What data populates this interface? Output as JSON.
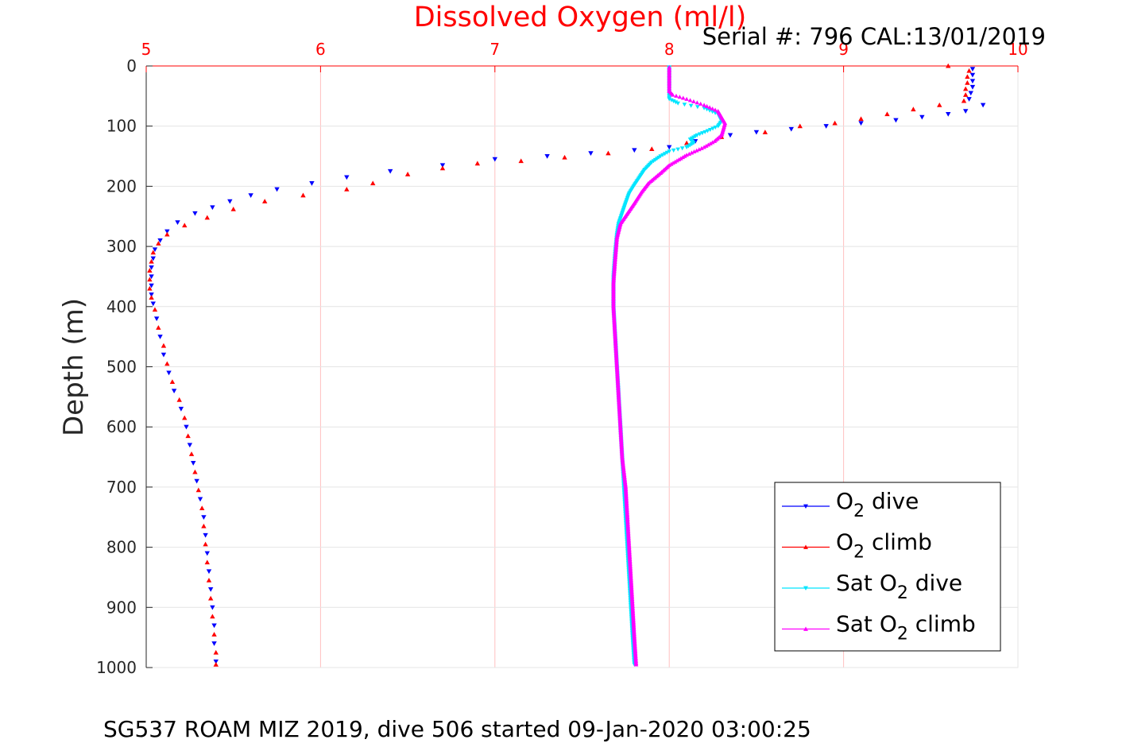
{
  "header": {
    "title": "Dissolved Oxygen (ml/l)",
    "serial": "Serial #: 796  CAL:13/01/2019"
  },
  "footer": {
    "caption": "SG537 ROAM MIZ 2019, dive 506 started 09-Jan-2020 03:00:25"
  },
  "chart_data": {
    "type": "scatter",
    "title": "Dissolved Oxygen (ml/l)",
    "xlabel": "Dissolved Oxygen (ml/l)",
    "ylabel": "Depth (m)",
    "xlim": [
      5,
      10
    ],
    "ylim": [
      0,
      1000
    ],
    "y_reversed": true,
    "x_axis_position": "top",
    "grid": true,
    "legend_position": "bottom-right",
    "x_ticks": [
      5,
      6,
      7,
      8,
      9,
      10
    ],
    "y_ticks": [
      0,
      100,
      200,
      300,
      400,
      500,
      600,
      700,
      800,
      900,
      1000
    ],
    "colors": {
      "axis_top": "#ff0000",
      "grid": "#ffc0c0",
      "legend_border": "#000000"
    },
    "series": [
      {
        "name": "O2 dive",
        "legend": {
          "main": "O",
          "sub": "2",
          "suffix": " dive",
          "prefix": ""
        },
        "color": "#0000ff",
        "marker": "down-triangle",
        "points": [
          [
            9.74,
            5
          ],
          [
            9.74,
            15
          ],
          [
            9.74,
            25
          ],
          [
            9.74,
            35
          ],
          [
            9.73,
            45
          ],
          [
            9.72,
            55
          ],
          [
            9.8,
            65
          ],
          [
            9.7,
            75
          ],
          [
            9.6,
            80
          ],
          [
            9.45,
            85
          ],
          [
            9.3,
            90
          ],
          [
            9.1,
            95
          ],
          [
            8.9,
            100
          ],
          [
            8.7,
            105
          ],
          [
            8.5,
            110
          ],
          [
            8.35,
            115
          ],
          [
            8.15,
            125
          ],
          [
            8.0,
            135
          ],
          [
            7.8,
            140
          ],
          [
            7.55,
            145
          ],
          [
            7.3,
            150
          ],
          [
            7.0,
            155
          ],
          [
            6.7,
            165
          ],
          [
            6.4,
            175
          ],
          [
            6.15,
            185
          ],
          [
            5.95,
            195
          ],
          [
            5.75,
            205
          ],
          [
            5.6,
            215
          ],
          [
            5.48,
            225
          ],
          [
            5.38,
            235
          ],
          [
            5.28,
            245
          ],
          [
            5.18,
            260
          ],
          [
            5.12,
            275
          ],
          [
            5.08,
            290
          ],
          [
            5.05,
            305
          ],
          [
            5.04,
            320
          ],
          [
            5.03,
            335
          ],
          [
            5.03,
            350
          ],
          [
            5.03,
            365
          ],
          [
            5.03,
            380
          ],
          [
            5.04,
            395
          ],
          [
            5.06,
            420
          ],
          [
            5.08,
            450
          ],
          [
            5.1,
            480
          ],
          [
            5.13,
            510
          ],
          [
            5.16,
            540
          ],
          [
            5.2,
            570
          ],
          [
            5.23,
            600
          ],
          [
            5.25,
            630
          ],
          [
            5.27,
            660
          ],
          [
            5.29,
            690
          ],
          [
            5.31,
            720
          ],
          [
            5.33,
            750
          ],
          [
            5.34,
            780
          ],
          [
            5.35,
            810
          ],
          [
            5.36,
            840
          ],
          [
            5.37,
            870
          ],
          [
            5.38,
            900
          ],
          [
            5.39,
            930
          ],
          [
            5.39,
            960
          ],
          [
            5.4,
            990
          ]
        ]
      },
      {
        "name": "O2 climb",
        "legend": {
          "main": "O",
          "sub": "2",
          "suffix": " climb",
          "prefix": ""
        },
        "color": "#ff0000",
        "marker": "up-triangle",
        "points": [
          [
            9.6,
            0
          ],
          [
            9.72,
            8
          ],
          [
            9.71,
            18
          ],
          [
            9.71,
            28
          ],
          [
            9.7,
            38
          ],
          [
            9.7,
            48
          ],
          [
            9.69,
            58
          ],
          [
            9.55,
            65
          ],
          [
            9.4,
            72
          ],
          [
            9.25,
            80
          ],
          [
            9.1,
            88
          ],
          [
            8.95,
            95
          ],
          [
            8.75,
            100
          ],
          [
            8.55,
            110
          ],
          [
            8.3,
            118
          ],
          [
            8.1,
            128
          ],
          [
            7.9,
            138
          ],
          [
            7.65,
            145
          ],
          [
            7.4,
            152
          ],
          [
            7.15,
            158
          ],
          [
            6.9,
            162
          ],
          [
            6.7,
            170
          ],
          [
            6.5,
            180
          ],
          [
            6.3,
            195
          ],
          [
            6.15,
            205
          ],
          [
            5.9,
            215
          ],
          [
            5.68,
            225
          ],
          [
            5.5,
            238
          ],
          [
            5.35,
            252
          ],
          [
            5.22,
            265
          ],
          [
            5.12,
            280
          ],
          [
            5.07,
            295
          ],
          [
            5.04,
            310
          ],
          [
            5.03,
            325
          ],
          [
            5.02,
            340
          ],
          [
            5.02,
            355
          ],
          [
            5.02,
            370
          ],
          [
            5.03,
            385
          ],
          [
            5.05,
            405
          ],
          [
            5.07,
            435
          ],
          [
            5.1,
            465
          ],
          [
            5.12,
            495
          ],
          [
            5.15,
            525
          ],
          [
            5.19,
            555
          ],
          [
            5.22,
            585
          ],
          [
            5.24,
            615
          ],
          [
            5.26,
            645
          ],
          [
            5.28,
            675
          ],
          [
            5.3,
            705
          ],
          [
            5.32,
            735
          ],
          [
            5.33,
            765
          ],
          [
            5.34,
            795
          ],
          [
            5.35,
            825
          ],
          [
            5.36,
            855
          ],
          [
            5.37,
            885
          ],
          [
            5.38,
            915
          ],
          [
            5.39,
            945
          ],
          [
            5.4,
            975
          ],
          [
            5.4,
            995
          ]
        ]
      },
      {
        "name": "Sat O2 dive",
        "legend": {
          "main": "O",
          "sub": "2",
          "suffix": " dive",
          "prefix": "Sat "
        },
        "color": "#00e5ff",
        "marker": "down-triangle",
        "points": [
          [
            8.0,
            2
          ],
          [
            8.0,
            15
          ],
          [
            8.0,
            30
          ],
          [
            8.0,
            45
          ],
          [
            8.0,
            55
          ],
          [
            8.05,
            62
          ],
          [
            8.2,
            70
          ],
          [
            8.28,
            80
          ],
          [
            8.3,
            92
          ],
          [
            8.28,
            100
          ],
          [
            8.22,
            108
          ],
          [
            8.16,
            115
          ],
          [
            8.12,
            122
          ],
          [
            8.14,
            128
          ],
          [
            8.1,
            135
          ],
          [
            8.0,
            142
          ],
          [
            7.95,
            150
          ],
          [
            7.9,
            160
          ],
          [
            7.86,
            172
          ],
          [
            7.83,
            185
          ],
          [
            7.8,
            198
          ],
          [
            7.77,
            212
          ],
          [
            7.75,
            228
          ],
          [
            7.73,
            245
          ],
          [
            7.71,
            262
          ],
          [
            7.7,
            280
          ],
          [
            7.69,
            310
          ],
          [
            7.68,
            350
          ],
          [
            7.68,
            400
          ],
          [
            7.69,
            450
          ],
          [
            7.7,
            500
          ],
          [
            7.71,
            550
          ],
          [
            7.72,
            600
          ],
          [
            7.73,
            650
          ],
          [
            7.74,
            700
          ],
          [
            7.75,
            750
          ],
          [
            7.76,
            800
          ],
          [
            7.77,
            850
          ],
          [
            7.78,
            900
          ],
          [
            7.79,
            950
          ],
          [
            7.8,
            995
          ]
        ]
      },
      {
        "name": "Sat O2 climb",
        "legend": {
          "main": "O",
          "sub": "2",
          "suffix": " climb",
          "prefix": "Sat "
        },
        "color": "#ff00ff",
        "marker": "up-triangle",
        "points": [
          [
            8.0,
            2
          ],
          [
            8.0,
            15
          ],
          [
            8.0,
            30
          ],
          [
            8.0,
            42
          ],
          [
            8.02,
            48
          ],
          [
            8.1,
            55
          ],
          [
            8.2,
            65
          ],
          [
            8.28,
            75
          ],
          [
            8.3,
            85
          ],
          [
            8.32,
            95
          ],
          [
            8.31,
            105
          ],
          [
            8.3,
            115
          ],
          [
            8.26,
            125
          ],
          [
            8.2,
            135
          ],
          [
            8.1,
            148
          ],
          [
            8.0,
            165
          ],
          [
            7.95,
            178
          ],
          [
            7.88,
            195
          ],
          [
            7.84,
            210
          ],
          [
            7.8,
            228
          ],
          [
            7.76,
            245
          ],
          [
            7.72,
            262
          ],
          [
            7.7,
            285
          ],
          [
            7.69,
            320
          ],
          [
            7.68,
            360
          ],
          [
            7.68,
            400
          ],
          [
            7.69,
            450
          ],
          [
            7.7,
            500
          ],
          [
            7.71,
            550
          ],
          [
            7.72,
            600
          ],
          [
            7.73,
            650
          ],
          [
            7.75,
            700
          ],
          [
            7.76,
            750
          ],
          [
            7.77,
            800
          ],
          [
            7.78,
            850
          ],
          [
            7.79,
            900
          ],
          [
            7.8,
            950
          ],
          [
            7.81,
            995
          ]
        ]
      }
    ]
  }
}
